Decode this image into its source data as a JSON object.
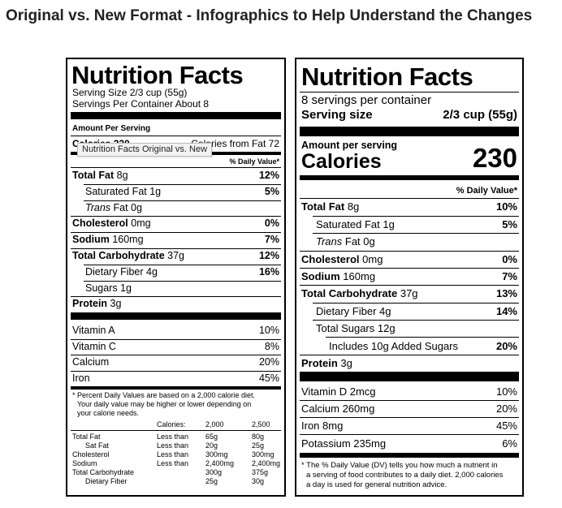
{
  "page": {
    "title": "Original vs. New Format - Infographics to Help Understand the Changes"
  },
  "tooltip": "Nutrition Facts Original vs. New",
  "original": {
    "title": "Nutrition Facts",
    "serving_size": "Serving Size 2/3 cup (55g)",
    "servings_per_container": "Servings Per Container About 8",
    "amount_per_serving": "Amount Per Serving",
    "calories": "Calories 230",
    "calories_from_fat": "Calories from Fat 72",
    "daily_value_header": "% Daily Value*",
    "nutrients": [
      {
        "name": "Total Fat",
        "amount": "8g",
        "dv": "12%"
      },
      {
        "name": "Saturated Fat",
        "amount": "1g",
        "dv": "5%"
      },
      {
        "name": "Trans",
        "amount": "Fat 0g",
        "dv": ""
      },
      {
        "name": "Cholesterol",
        "amount": "0mg",
        "dv": "0%"
      },
      {
        "name": "Sodium",
        "amount": "160mg",
        "dv": "7%"
      },
      {
        "name": "Total Carbohydrate",
        "amount": "37g",
        "dv": "12%"
      },
      {
        "name": "Dietary Fiber",
        "amount": "4g",
        "dv": "16%"
      },
      {
        "name": "Sugars",
        "amount": "1g",
        "dv": ""
      },
      {
        "name": "Protein",
        "amount": "3g",
        "dv": ""
      }
    ],
    "vitamins": [
      {
        "name": "Vitamin A",
        "dv": "10%"
      },
      {
        "name": "Vitamin C",
        "dv": "8%"
      },
      {
        "name": "Calcium",
        "dv": "20%"
      },
      {
        "name": "Iron",
        "dv": "45%"
      }
    ],
    "footnote": [
      "* Percent Daily Values are based on a 2,000 calorie diet.",
      "Your daily value may be higher or lower depending on",
      "your calorie needs."
    ],
    "footnote_table": {
      "header": [
        "Calories:",
        "2,000",
        "2,500"
      ],
      "rows": [
        [
          "Total Fat",
          "Less than",
          "65g",
          "80g"
        ],
        [
          "Sat Fat",
          "Less than",
          "20g",
          "25g"
        ],
        [
          "Cholesterol",
          "Less than",
          "300mg",
          "300mg"
        ],
        [
          "Sodium",
          "Less than",
          "2,400mg",
          "2,400mg"
        ],
        [
          "Total Carbohydrate",
          "",
          "300g",
          "375g"
        ],
        [
          "Dietary Fiber",
          "",
          "25g",
          "30g"
        ]
      ]
    }
  },
  "new": {
    "title": "Nutrition Facts",
    "servings_per_container": "8 servings per container",
    "serving_size_label": "Serving size",
    "serving_size_value": "2/3 cup (55g)",
    "amount_per_serving": "Amount per serving",
    "calories_label": "Calories",
    "calories_value": "230",
    "daily_value_header": "% Daily Value*",
    "nutrients": [
      {
        "name": "Total Fat",
        "amount": "8g",
        "dv": "10%"
      },
      {
        "name": "Saturated Fat",
        "amount": "1g",
        "dv": "5%"
      },
      {
        "name": "Trans",
        "amount": "Fat 0g",
        "dv": ""
      },
      {
        "name": "Cholesterol",
        "amount": "0mg",
        "dv": "0%"
      },
      {
        "name": "Sodium",
        "amount": "160mg",
        "dv": "7%"
      },
      {
        "name": "Total Carbohydrate",
        "amount": "37g",
        "dv": "13%"
      },
      {
        "name": "Dietary Fiber",
        "amount": "4g",
        "dv": "14%"
      },
      {
        "name": "Total Sugars",
        "amount": "12g",
        "dv": ""
      },
      {
        "name": "Includes 10g Added Sugars",
        "amount": "",
        "dv": "20%"
      },
      {
        "name": "Protein",
        "amount": "3g",
        "dv": ""
      }
    ],
    "vitamins": [
      {
        "name": "Vitamin D 2mcg",
        "dv": "10%"
      },
      {
        "name": "Calcium 260mg",
        "dv": "20%"
      },
      {
        "name": "Iron 8mg",
        "dv": "45%"
      },
      {
        "name": "Potassium 235mg",
        "dv": "6%"
      }
    ],
    "footnote": [
      "* The % Daily Value (DV) tells you how much a nutrient in",
      "a serving of food contributes to a daily diet. 2,000 calories",
      "a day is used for general nutrition advice."
    ]
  }
}
